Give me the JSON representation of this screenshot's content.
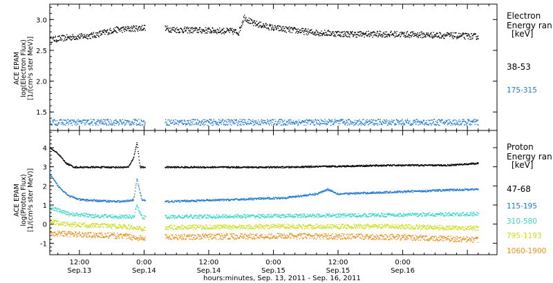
{
  "colors": {
    "black": "#000000",
    "blue": "#1f78d1",
    "cyan": "#33d6c8",
    "yellow": "#c8dc10",
    "orange": "#e8901a"
  },
  "chart_data": [
    {
      "type": "scatter",
      "panel": "electron",
      "ylabel_lines": [
        "ACE EPAM",
        "log(Electron Flux)",
        "[1/(cm²s ster MeV)]"
      ],
      "ylim": [
        1.2,
        3.25
      ],
      "yticks": [
        "1.5",
        "2.0",
        "2.5",
        "3.0"
      ],
      "legend_title": [
        "Electron",
        "Energy ran"
      ],
      "legend_unit": "[keV]",
      "x_unit": "hours from Sep. 13, 2011 00:00",
      "xlim": [
        6.5,
        89.5
      ],
      "data_gap_hours": [
        24.2,
        27.8
      ],
      "series": [
        {
          "name": "38-53",
          "color": "#000000",
          "profile_x": [
            6.5,
            8.5,
            10.5,
            14.5,
            18.5,
            20.5,
            24.2,
            27.8,
            30,
            36,
            40,
            41.5,
            42.5,
            44,
            48,
            55,
            62,
            70,
            80,
            86
          ],
          "profile_y": [
            2.68,
            2.7,
            2.72,
            2.75,
            2.84,
            2.85,
            2.88,
            2.86,
            2.84,
            2.83,
            2.82,
            2.8,
            3.05,
            2.95,
            2.87,
            2.8,
            2.77,
            2.77,
            2.75,
            2.73
          ],
          "scatter": 0.05
        },
        {
          "name": "175-315",
          "color": "#1f78d1",
          "profile_x": [
            6.5,
            86
          ],
          "profile_y": [
            1.34,
            1.34
          ],
          "scatter": 0.05
        }
      ]
    },
    {
      "type": "scatter",
      "panel": "proton",
      "ylabel_lines": [
        "ACE EPAM",
        "log(Proton Flux)",
        "[1/(cm²s ster MeV)]"
      ],
      "ylim": [
        -1.6,
        4.9
      ],
      "yticks": [
        "-1",
        "0",
        "1",
        "2",
        "3",
        "4"
      ],
      "legend_title": [
        "Proton",
        "Energy ran"
      ],
      "legend_unit": "[keV]",
      "x_unit": "hours from Sep. 13, 2011 00:00",
      "xlim": [
        6.5,
        89.5
      ],
      "data_gap_hours": [
        24.2,
        27.8
      ],
      "series": [
        {
          "name": "47-68",
          "color": "#000000",
          "profile_x": [
            6.5,
            8,
            9.5,
            11,
            14,
            18,
            21,
            22,
            22.6,
            23.2,
            24.2,
            27.8,
            40,
            50,
            60,
            70,
            80,
            86
          ],
          "profile_y": [
            4.0,
            3.7,
            3.2,
            3.0,
            3.0,
            3.0,
            3.0,
            3.5,
            4.3,
            3.0,
            3.0,
            3.0,
            3.0,
            3.0,
            3.05,
            3.1,
            3.1,
            3.2
          ],
          "scatter": 0.04
        },
        {
          "name": "115-195",
          "color": "#1f78d1",
          "profile_x": [
            6.5,
            8,
            10,
            12,
            15,
            20,
            22,
            22.6,
            23.5,
            24.2,
            27.8,
            40,
            50,
            56,
            58,
            60,
            70,
            80,
            86
          ],
          "profile_y": [
            2.6,
            2.0,
            1.5,
            1.3,
            1.25,
            1.2,
            1.3,
            2.4,
            1.3,
            1.25,
            1.2,
            1.3,
            1.4,
            1.6,
            1.85,
            1.6,
            1.7,
            1.8,
            1.85
          ],
          "scatter": 0.05
        },
        {
          "name": "310-580",
          "color": "#33d6c8",
          "profile_x": [
            6.5,
            8,
            10,
            15,
            22,
            22.6,
            23.5,
            24.2,
            27.8,
            50,
            70,
            86
          ],
          "profile_y": [
            0.9,
            0.75,
            0.55,
            0.45,
            0.4,
            1.0,
            0.4,
            0.35,
            0.4,
            0.45,
            0.5,
            0.55
          ],
          "scatter": 0.1
        },
        {
          "name": "795-1193",
          "color": "#c8dc10",
          "profile_x": [
            6.5,
            10,
            20,
            24.2,
            27.8,
            50,
            70,
            86
          ],
          "profile_y": [
            0.15,
            0.0,
            -0.1,
            -0.25,
            -0.15,
            -0.1,
            -0.1,
            -0.2
          ],
          "scatter": 0.12
        },
        {
          "name": "1060-1900",
          "color": "#e8901a",
          "profile_x": [
            6.5,
            10,
            20,
            24.2,
            27.8,
            50,
            70,
            86
          ],
          "profile_y": [
            -0.45,
            -0.5,
            -0.6,
            -0.75,
            -0.65,
            -0.6,
            -0.65,
            -0.8
          ],
          "scatter": 0.15
        }
      ]
    }
  ],
  "x_axis": {
    "tick_labels": [
      {
        "hour": 12,
        "line1": "12:00",
        "line2": "Sep.13"
      },
      {
        "hour": 24,
        "line1": "0:00",
        "line2": "Sep.14"
      },
      {
        "hour": 36,
        "line1": "12:00",
        "line2": "Sep.14"
      },
      {
        "hour": 48,
        "line1": "0:00",
        "line2": "Sep.15"
      },
      {
        "hour": 60,
        "line1": "12:00",
        "line2": "Sep.15"
      },
      {
        "hour": 72,
        "line1": "0:00",
        "line2": "Sep.16"
      }
    ],
    "minor_step_hours": 2,
    "title": "hours:minutes, Sep. 13, 2011 - Sep. 16, 2011"
  }
}
